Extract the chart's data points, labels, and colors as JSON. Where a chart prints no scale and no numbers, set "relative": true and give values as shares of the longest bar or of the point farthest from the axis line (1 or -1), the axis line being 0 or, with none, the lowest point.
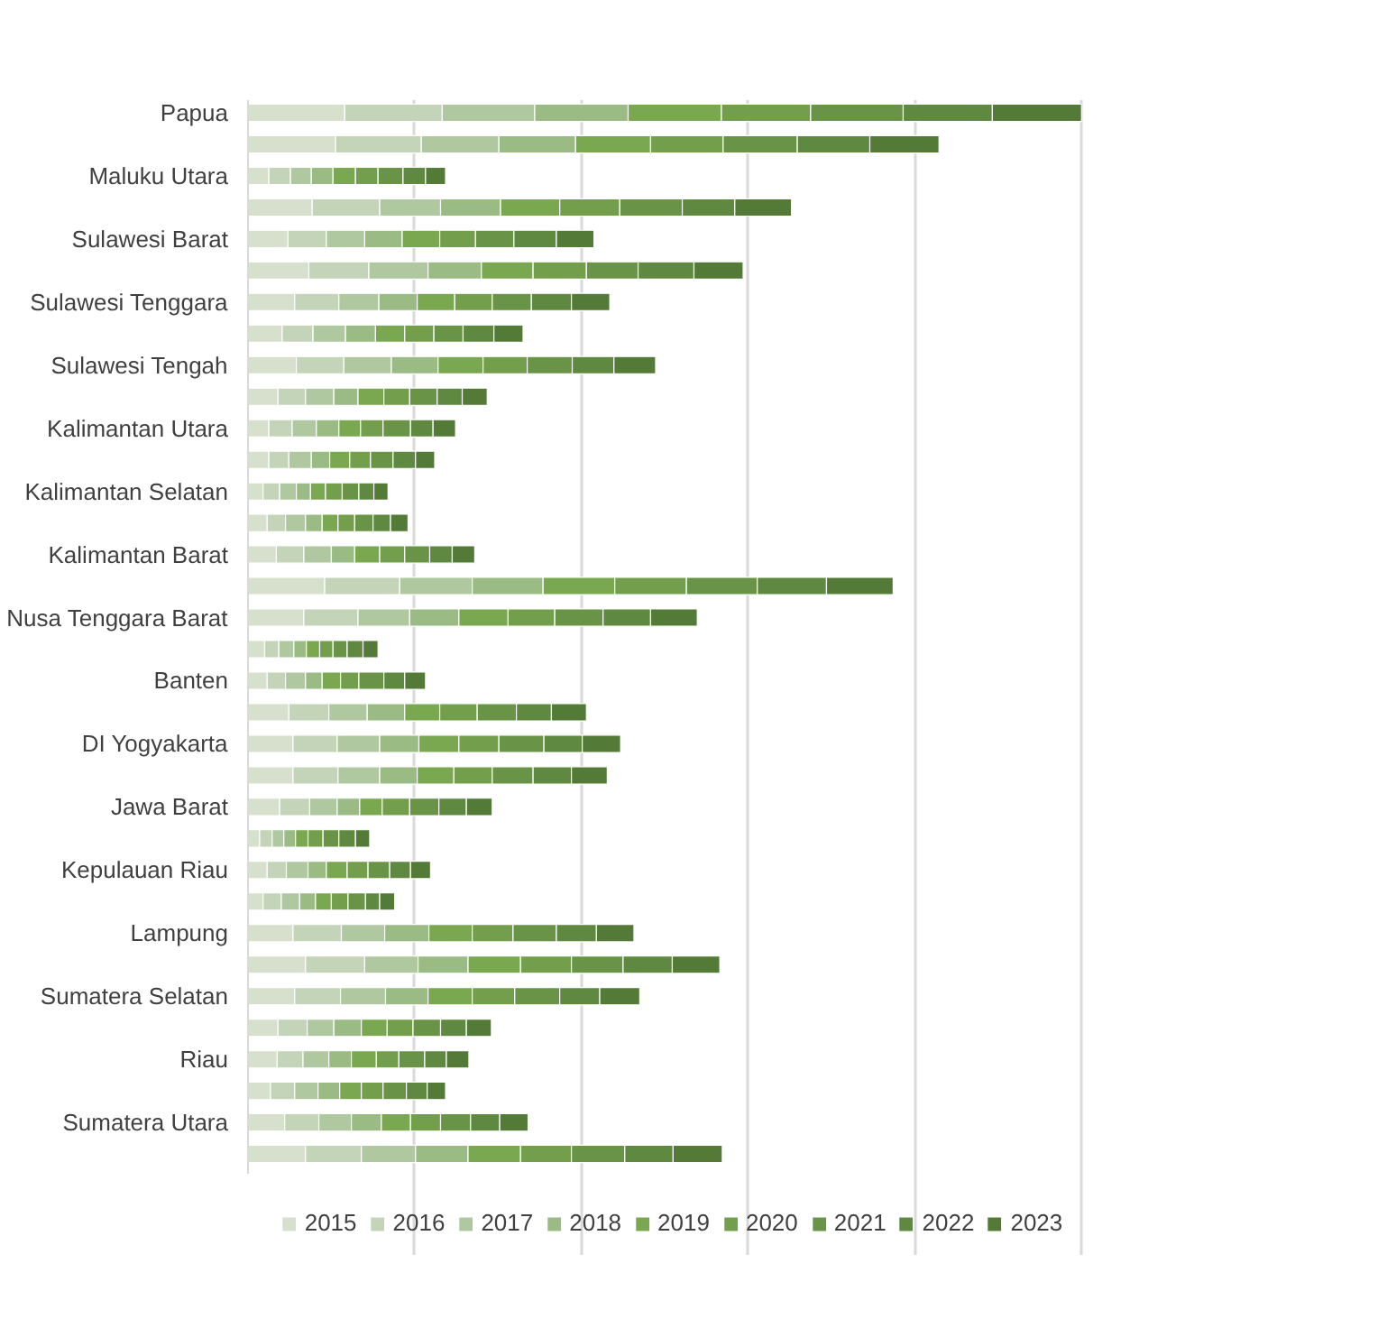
{
  "chart_data": {
    "type": "bar",
    "orientation": "horizontal",
    "stacked": true,
    "relative": true,
    "grid": "x",
    "legend": "bottom",
    "categories": [
      "Papua",
      null,
      "Maluku Utara",
      null,
      "Sulawesi Barat",
      null,
      "Sulawesi Tenggara",
      null,
      "Sulawesi Tengah",
      null,
      "Kalimantan Utara",
      null,
      "Kalimantan Selatan",
      null,
      "Kalimantan Barat",
      null,
      "Nusa Tenggara Barat",
      null,
      "Banten",
      null,
      "DI Yogyakarta",
      null,
      "Jawa Barat",
      null,
      "Kepulauan Riau",
      null,
      "Lampung",
      null,
      "Sumatera Selatan",
      null,
      "Riau",
      null,
      "Sumatera Utara",
      null
    ],
    "series": [
      {
        "name": "2015",
        "color": "#d6e0cd",
        "values": [
          0.116,
          0.105,
          0.025,
          0.077,
          0.048,
          0.073,
          0.056,
          0.041,
          0.058,
          0.036,
          0.025,
          0.025,
          0.018,
          0.023,
          0.034,
          0.092,
          0.067,
          0.02,
          0.023,
          0.049,
          0.054,
          0.054,
          0.038,
          0.014,
          0.023,
          0.018,
          0.054,
          0.069,
          0.056,
          0.036,
          0.035,
          0.027,
          0.044,
          0.069
        ]
      },
      {
        "name": "2016",
        "color": "#c3d4b8",
        "values": [
          0.117,
          0.103,
          0.026,
          0.081,
          0.046,
          0.072,
          0.053,
          0.037,
          0.057,
          0.033,
          0.028,
          0.024,
          0.02,
          0.022,
          0.033,
          0.09,
          0.065,
          0.017,
          0.022,
          0.048,
          0.053,
          0.054,
          0.036,
          0.015,
          0.023,
          0.022,
          0.058,
          0.071,
          0.055,
          0.035,
          0.031,
          0.029,
          0.041,
          0.067
        ]
      },
      {
        "name": "2017",
        "color": "#afc89f",
        "values": [
          0.111,
          0.093,
          0.025,
          0.073,
          0.046,
          0.071,
          0.048,
          0.039,
          0.057,
          0.034,
          0.029,
          0.027,
          0.02,
          0.024,
          0.033,
          0.087,
          0.062,
          0.018,
          0.024,
          0.046,
          0.051,
          0.05,
          0.033,
          0.014,
          0.026,
          0.022,
          0.052,
          0.064,
          0.054,
          0.032,
          0.031,
          0.028,
          0.039,
          0.065
        ]
      },
      {
        "name": "2018",
        "color": "#9bbb84",
        "values": [
          0.112,
          0.092,
          0.026,
          0.072,
          0.045,
          0.064,
          0.046,
          0.036,
          0.056,
          0.029,
          0.027,
          0.022,
          0.017,
          0.02,
          0.028,
          0.085,
          0.059,
          0.015,
          0.02,
          0.045,
          0.047,
          0.045,
          0.027,
          0.014,
          0.022,
          0.019,
          0.053,
          0.06,
          0.051,
          0.033,
          0.027,
          0.026,
          0.036,
          0.063
        ]
      },
      {
        "name": "2019",
        "color": "#7aa851",
        "values": [
          0.112,
          0.09,
          0.027,
          0.071,
          0.045,
          0.062,
          0.045,
          0.035,
          0.054,
          0.031,
          0.026,
          0.024,
          0.018,
          0.019,
          0.03,
          0.086,
          0.059,
          0.016,
          0.022,
          0.042,
          0.048,
          0.044,
          0.027,
          0.015,
          0.025,
          0.019,
          0.052,
          0.063,
          0.053,
          0.031,
          0.03,
          0.026,
          0.035,
          0.063
        ]
      },
      {
        "name": "2020",
        "color": "#739f4d",
        "values": [
          0.107,
          0.087,
          0.027,
          0.072,
          0.043,
          0.064,
          0.045,
          0.035,
          0.053,
          0.031,
          0.027,
          0.025,
          0.02,
          0.02,
          0.03,
          0.086,
          0.056,
          0.016,
          0.022,
          0.045,
          0.048,
          0.046,
          0.033,
          0.018,
          0.025,
          0.02,
          0.049,
          0.061,
          0.051,
          0.031,
          0.027,
          0.026,
          0.036,
          0.061
        ]
      },
      {
        "name": "2021",
        "color": "#699447",
        "values": [
          0.111,
          0.089,
          0.03,
          0.075,
          0.046,
          0.062,
          0.047,
          0.035,
          0.054,
          0.033,
          0.033,
          0.027,
          0.02,
          0.022,
          0.03,
          0.085,
          0.058,
          0.017,
          0.03,
          0.047,
          0.054,
          0.049,
          0.035,
          0.019,
          0.026,
          0.021,
          0.052,
          0.062,
          0.054,
          0.033,
          0.031,
          0.028,
          0.036,
          0.064
        ]
      },
      {
        "name": "2022",
        "color": "#5f8840",
        "values": [
          0.107,
          0.087,
          0.027,
          0.063,
          0.051,
          0.067,
          0.048,
          0.037,
          0.05,
          0.03,
          0.027,
          0.027,
          0.018,
          0.021,
          0.027,
          0.083,
          0.057,
          0.019,
          0.025,
          0.042,
          0.046,
          0.046,
          0.033,
          0.02,
          0.025,
          0.017,
          0.048,
          0.059,
          0.048,
          0.031,
          0.026,
          0.025,
          0.035,
          0.058
        ]
      },
      {
        "name": "2023",
        "color": "#547a38",
        "values": [
          0.107,
          0.083,
          0.024,
          0.068,
          0.045,
          0.059,
          0.046,
          0.035,
          0.05,
          0.03,
          0.027,
          0.023,
          0.017,
          0.021,
          0.027,
          0.08,
          0.056,
          0.018,
          0.025,
          0.042,
          0.046,
          0.043,
          0.031,
          0.017,
          0.024,
          0.018,
          0.045,
          0.057,
          0.048,
          0.03,
          0.027,
          0.022,
          0.034,
          0.059
        ]
      }
    ]
  }
}
